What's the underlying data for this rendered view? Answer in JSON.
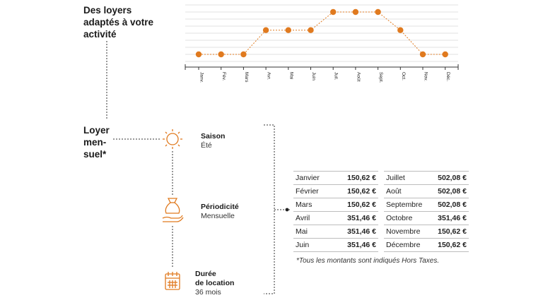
{
  "header": {
    "title": "Des loyers adaptés à votre activité"
  },
  "chart_data": {
    "type": "line",
    "title": "Des loyers adaptés à votre activité",
    "categories": [
      "Janv.",
      "Fév.",
      "Mars",
      "Avr.",
      "Mai",
      "Juin",
      "Juil.",
      "Août",
      "Sept.",
      "Oct.",
      "Nov.",
      "Déc."
    ],
    "values": [
      150.62,
      150.62,
      150.62,
      351.46,
      351.46,
      351.46,
      502.08,
      502.08,
      502.08,
      351.46,
      150.62,
      150.62
    ],
    "xlabel": "",
    "ylabel": "",
    "grid": true,
    "color": "#e07a1f"
  },
  "rent": {
    "title": "Loyer men-suel*",
    "title_lines": [
      "Loyer",
      "men-",
      "suel*"
    ],
    "items": [
      {
        "label": "Saison",
        "value": "Été",
        "icon": "sun-icon"
      },
      {
        "label": "Périodicité",
        "value": "Mensuelle",
        "icon": "money-bag-hand-icon"
      },
      {
        "label": "Durée de location",
        "label_lines": [
          "Durée",
          "de location"
        ],
        "value": "36 mois",
        "icon": "calendar-icon"
      }
    ]
  },
  "prices": {
    "rows": [
      [
        "Janvier",
        "150,62 €",
        "Juillet",
        "502,08 €"
      ],
      [
        "Février",
        "150,62 €",
        "Août",
        "502,08 €"
      ],
      [
        "Mars",
        "150,62 €",
        "Septembre",
        "502,08 €"
      ],
      [
        "Avril",
        "351,46 €",
        "Octobre",
        "351,46 €"
      ],
      [
        "Mai",
        "351,46 €",
        "Novembre",
        "150,62 €"
      ],
      [
        "Juin",
        "351,46 €",
        "Décembre",
        "150,62 €"
      ]
    ],
    "note": "*Tous les montants sont indiqués Hors Taxes."
  },
  "colors": {
    "accent": "#e07a1f",
    "text": "#1a1a1a",
    "grid": "#d9d9d9"
  }
}
